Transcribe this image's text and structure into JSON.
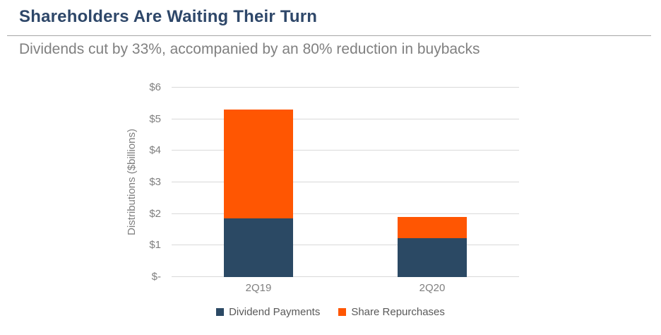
{
  "header": {
    "title": "Shareholders Are Waiting Their Turn",
    "subtitle": "Dividends cut by 33%, accompanied by an 80% reduction in buybacks"
  },
  "colors": {
    "title_text": "#2E4769",
    "subtitle_text": "#808080",
    "divider": "#A6A6A6",
    "axis_text": "#7F7F7F",
    "legend_text": "#595959",
    "gridline": "#D9D9D9",
    "navy": "#2B4964",
    "orange": "#FF5602"
  },
  "chart_data": {
    "type": "bar",
    "stacked": true,
    "title": "Shareholders Are Waiting Their Turn",
    "subtitle": "Dividends cut by 33%, accompanied by an 80% reduction in buybacks",
    "xlabel": "",
    "ylabel": "Distributions ($billions)",
    "categories": [
      "2Q19",
      "2Q20"
    ],
    "series": [
      {
        "name": "Dividend Payments",
        "color_key": "navy",
        "values": [
          1.85,
          1.24
        ]
      },
      {
        "name": "Share Repurchases",
        "color_key": "orange",
        "values": [
          3.45,
          0.67
        ]
      }
    ],
    "stack_totals": [
      5.3,
      1.91
    ],
    "ylim": [
      0,
      6
    ],
    "yticks": [
      0,
      1,
      2,
      3,
      4,
      5,
      6
    ],
    "ytick_labels": [
      "$-",
      "$1",
      "$2",
      "$3",
      "$4",
      "$5",
      "$6"
    ],
    "grid": true,
    "legend_position": "bottom"
  }
}
